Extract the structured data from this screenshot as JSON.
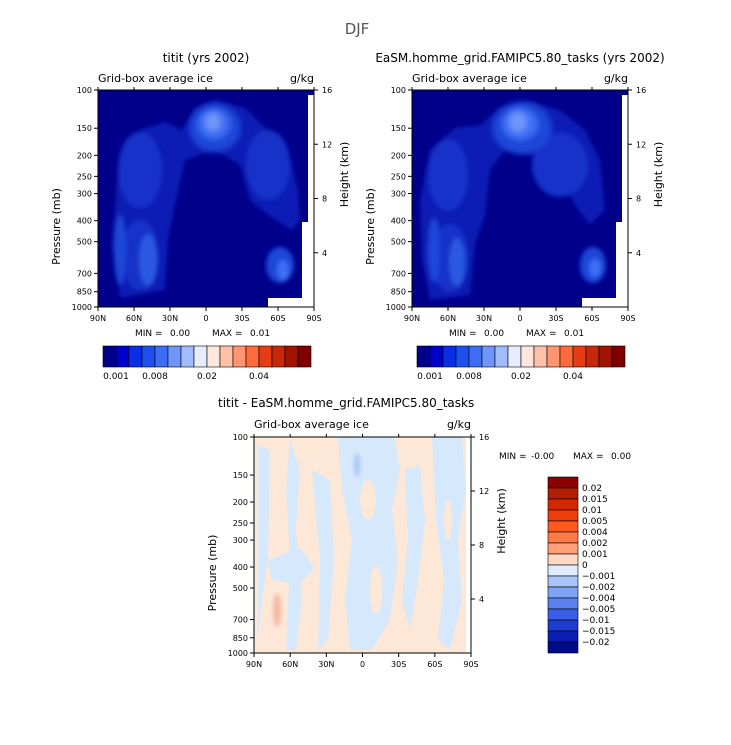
{
  "page": {
    "title": "DJF"
  },
  "colors": {
    "background_field": "#00008b",
    "plot_border": "#000000",
    "diff_base": "#fde8d8",
    "diff_neg": "#d6e8fb"
  },
  "chart_data": [
    {
      "type": "heatmap",
      "panel": "left",
      "title": "titit (yrs 2002)",
      "subtitle": "Grid-box average ice",
      "units": "g/kg",
      "xlabel": "",
      "ylabel": "Pressure (mb)",
      "y2label": "Height (km)",
      "x_ticks": [
        "90N",
        "60N",
        "30N",
        "0",
        "30S",
        "60S",
        "90S"
      ],
      "y_ticks": [
        "100",
        "150",
        "200",
        "250",
        "300",
        "400",
        "500",
        "700",
        "850",
        "1000"
      ],
      "y2_ticks": [
        "16",
        "12",
        "8",
        "4"
      ],
      "stats": {
        "min_label": "MIN =",
        "min": "0.00",
        "max_label": "MAX =",
        "max": "0.01"
      },
      "colorbar": {
        "labels": [
          "0.001",
          "0.008",
          "0.02",
          "0.04"
        ],
        "colors": [
          "#00008b",
          "#0000cd",
          "#0a2ee6",
          "#1e50f0",
          "#3c6ef5",
          "#6e96fa",
          "#a0bcfc",
          "#e6ecff",
          "#ffe6dc",
          "#ffc0a8",
          "#ff9670",
          "#ff6a3c",
          "#e63c14",
          "#c8280a",
          "#a01400",
          "#800000"
        ]
      }
    },
    {
      "type": "heatmap",
      "panel": "right",
      "title": "EaSM.homme_grid.FAMIPC5.80_tasks (yrs 2002)",
      "subtitle": "Grid-box average ice",
      "units": "g/kg",
      "xlabel": "",
      "ylabel": "Pressure (mb)",
      "y2label": "Height (km)",
      "x_ticks": [
        "90N",
        "60N",
        "30N",
        "0",
        "30S",
        "60S",
        "90S"
      ],
      "y_ticks": [
        "100",
        "150",
        "200",
        "250",
        "300",
        "400",
        "500",
        "700",
        "850",
        "1000"
      ],
      "y2_ticks": [
        "16",
        "12",
        "8",
        "4"
      ],
      "stats": {
        "min_label": "MIN =",
        "min": "0.00",
        "max_label": "MAX =",
        "max": "0.01"
      },
      "colorbar": {
        "labels": [
          "0.001",
          "0.008",
          "0.02",
          "0.04"
        ],
        "colors": [
          "#00008b",
          "#0000cd",
          "#0a2ee6",
          "#1e50f0",
          "#3c6ef5",
          "#6e96fa",
          "#a0bcfc",
          "#e6ecff",
          "#ffe6dc",
          "#ffc0a8",
          "#ff9670",
          "#ff6a3c",
          "#e63c14",
          "#c8280a",
          "#a01400",
          "#800000"
        ]
      }
    },
    {
      "type": "heatmap",
      "panel": "difference",
      "title": "titit - EaSM.homme_grid.FAMIPC5.80_tasks",
      "subtitle": "Grid-box average ice",
      "units": "g/kg",
      "xlabel": "",
      "ylabel": "Pressure (mb)",
      "y2label": "Height (km)",
      "x_ticks": [
        "90N",
        "60N",
        "30N",
        "0",
        "30S",
        "60S",
        "90S"
      ],
      "y_ticks": [
        "100",
        "150",
        "200",
        "250",
        "300",
        "400",
        "500",
        "700",
        "850",
        "1000"
      ],
      "y2_ticks": [
        "16",
        "12",
        "8",
        "4"
      ],
      "stats": {
        "min_label": "MIN =",
        "min": "-0.00",
        "max_label": "MAX =",
        "max": "0.00"
      },
      "colorbar": {
        "labels": [
          "0.02",
          "0.015",
          "0.01",
          "0.005",
          "0.004",
          "0.002",
          "0.001",
          "0",
          "-0.001",
          "-0.002",
          "-0.004",
          "-0.005",
          "-0.01",
          "-0.015",
          "-0.02"
        ],
        "colors": [
          "#8b0000",
          "#b41e00",
          "#d22800",
          "#ee3c0a",
          "#ff5a1e",
          "#ff7a46",
          "#ffa078",
          "#ffd8c4",
          "#e0ecfb",
          "#a8c4f8",
          "#7fa4f4",
          "#5a82ee",
          "#3a5ee6",
          "#1e3cd2",
          "#0a1eb4",
          "#000a8c"
        ]
      }
    }
  ]
}
